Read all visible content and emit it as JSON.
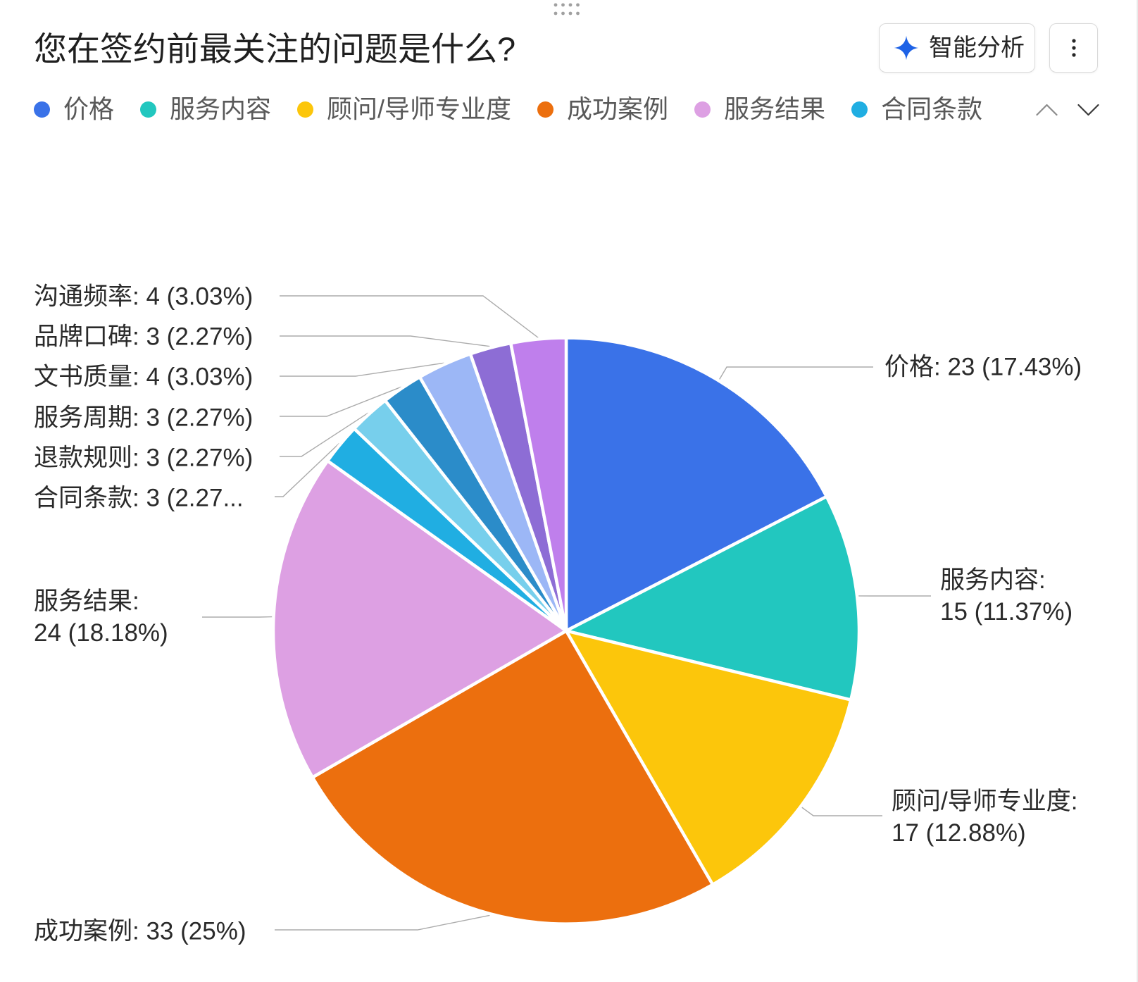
{
  "icons": {
    "drag_handle": "drag-handle-icon",
    "smart_analysis": "sparkle-icon",
    "more": "more-vertical-icon",
    "legend_prev": "chevron-up-icon",
    "legend_next": "chevron-down-icon"
  },
  "theme": {
    "accent": "#1E62E6",
    "background": "#FFFFFF"
  },
  "toolbar": {
    "smart_analysis_label": "智能分析"
  },
  "chart_data": {
    "type": "pie",
    "title": "您在签约前最关注的问题是什么?",
    "legend": {
      "placement": "top",
      "items": [
        "价格",
        "服务内容",
        "顾问/导师专业度",
        "成功案例",
        "服务结果",
        "合同条款"
      ]
    },
    "slices": [
      {
        "name": "价格",
        "value": 23,
        "percent": 17.43,
        "color": "#3A72E8"
      },
      {
        "name": "服务内容",
        "value": 15,
        "percent": 11.37,
        "color": "#22C7BF"
      },
      {
        "name": "顾问/导师专业度",
        "value": 17,
        "percent": 12.88,
        "color": "#FCC60B"
      },
      {
        "name": "成功案例",
        "value": 33,
        "percent": 25,
        "color": "#EC6F0E"
      },
      {
        "name": "服务结果",
        "value": 24,
        "percent": 18.18,
        "color": "#DDA0E3"
      },
      {
        "name": "合同条款",
        "value": 3,
        "percent": 2.27,
        "color": "#20AEE2"
      },
      {
        "name": "退款规则",
        "value": 3,
        "percent": 2.27,
        "color": "#77CFEC"
      },
      {
        "name": "服务周期",
        "value": 3,
        "percent": 2.27,
        "color": "#2B8CC9"
      },
      {
        "name": "文书质量",
        "value": 4,
        "percent": 3.03,
        "color": "#9CB7F6"
      },
      {
        "name": "品牌口碑",
        "value": 3,
        "percent": 2.27,
        "color": "#8D6DD5"
      },
      {
        "name": "沟通频率",
        "value": 4,
        "percent": 3.03,
        "color": "#BF7FEC"
      }
    ]
  }
}
